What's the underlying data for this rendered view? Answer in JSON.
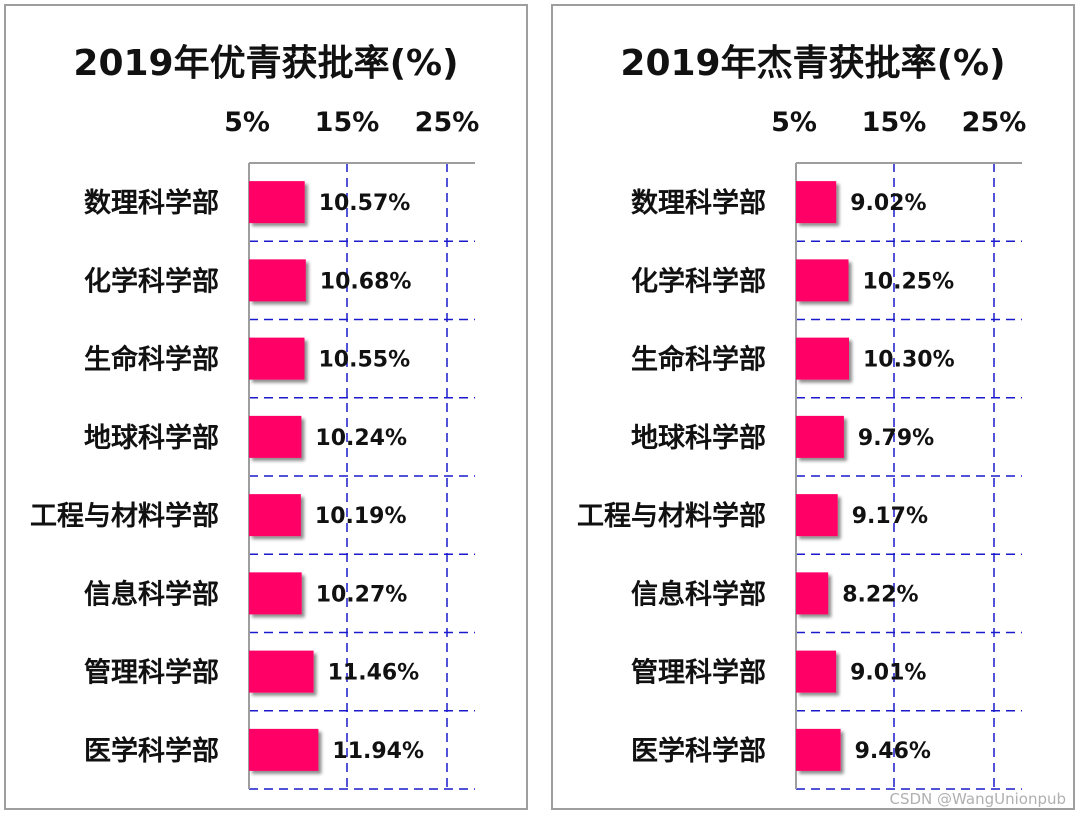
{
  "chart_data": [
    {
      "type": "bar",
      "orientation": "horizontal",
      "title": "2019年优青获批率(%)",
      "categories": [
        "数理科学部",
        "化学科学部",
        "生命科学部",
        "地球科学部",
        "工程与材料学部",
        "信息科学部",
        "管理科学部",
        "医学科学部"
      ],
      "values": [
        10.57,
        10.68,
        10.55,
        10.24,
        10.19,
        10.27,
        11.46,
        11.94
      ],
      "value_labels": [
        "10.57%",
        "10.68%",
        "10.55%",
        "10.24%",
        "10.19%",
        "10.27%",
        "11.46%",
        "11.94%"
      ],
      "x_ticks": [
        "5%",
        "15%",
        "25%"
      ],
      "xlim": [
        5,
        28
      ],
      "grid": true,
      "xlabel": "",
      "ylabel": "",
      "bar_color": "#ff0066",
      "grid_color": "#1a1acc"
    },
    {
      "type": "bar",
      "orientation": "horizontal",
      "title": "2019年杰青获批率(%)",
      "categories": [
        "数理科学部",
        "化学科学部",
        "生命科学部",
        "地球科学部",
        "工程与材料学部",
        "信息科学部",
        "管理科学部",
        "医学科学部"
      ],
      "values": [
        9.02,
        10.25,
        10.3,
        9.79,
        9.17,
        8.22,
        9.01,
        9.46
      ],
      "value_labels": [
        "9.02%",
        "10.25%",
        "10.30%",
        "9.79%",
        "9.17%",
        "8.22%",
        "9.01%",
        "9.46%"
      ],
      "x_ticks": [
        "5%",
        "15%",
        "25%"
      ],
      "xlim": [
        5,
        28
      ],
      "grid": true,
      "xlabel": "",
      "ylabel": "",
      "bar_color": "#ff0066",
      "grid_color": "#1a1acc"
    }
  ],
  "watermark": "CSDN @WangUnionpub"
}
